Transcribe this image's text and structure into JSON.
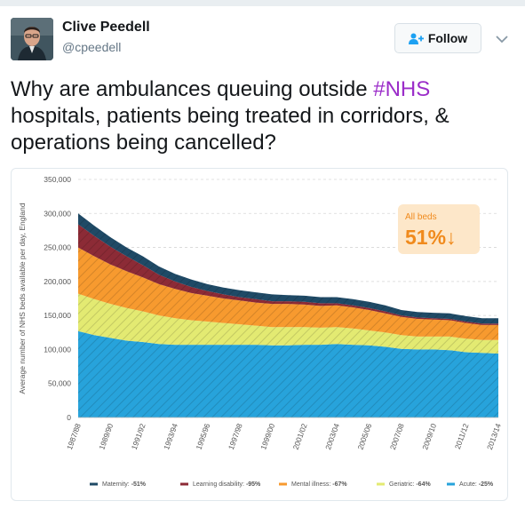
{
  "tweet": {
    "author_name": "Clive Peedell",
    "handle": "@cpeedell",
    "follow_label": "Follow",
    "text_before": "Why are ambulances queuing outside ",
    "hashtag": "#NHS",
    "text_after": " hospitals, patients being treated in corridors, & operations being cancelled?"
  },
  "colors": {
    "hashtag": "#9b2dc9",
    "maternity": "#1f4a66",
    "learning_disability": "#8c2b36",
    "mental_illness": "#f79a2f",
    "geriatric": "#e3ea72",
    "acute": "#27a3db"
  },
  "icons": [
    "add-user-icon",
    "chevron-down-icon"
  ],
  "chart_data": {
    "type": "area",
    "stacked": true,
    "ylabel": "Average number of NHS beds available per day, England",
    "ylim": [
      0,
      350000
    ],
    "yticks": [
      "0",
      "50,000",
      "100,000",
      "150,000",
      "200,000",
      "250,000",
      "300,000",
      "350,000"
    ],
    "grid": true,
    "categories": [
      "1987/88",
      "1988/89",
      "1989/90",
      "1990/91",
      "1991/92",
      "1992/93",
      "1993/94",
      "1994/95",
      "1995/96",
      "1996/97",
      "1997/98",
      "1998/99",
      "1999/00",
      "2000/01",
      "2001/02",
      "2002/03",
      "2003/04",
      "2004/05",
      "2005/06",
      "2006/07",
      "2007/08",
      "2008/09",
      "2009/10",
      "2010/11",
      "2011/12",
      "2012/13",
      "2013/14"
    ],
    "xtick_labels": [
      "1987/88",
      "1989/90",
      "1991/92",
      "1993/94",
      "1995/96",
      "1997/98",
      "1999/00",
      "2001/02",
      "2003/04",
      "2005/06",
      "2007/08",
      "2009/10",
      "2011/12",
      "2013/14"
    ],
    "series": [
      {
        "name": "Acute",
        "change": "-25%",
        "values": [
          127000,
          121000,
          117000,
          113000,
          111000,
          108000,
          107000,
          107000,
          107000,
          107000,
          107000,
          107000,
          106000,
          106000,
          107000,
          107000,
          108000,
          107000,
          106000,
          104000,
          101000,
          100000,
          100000,
          99000,
          96000,
          95000,
          94000
        ]
      },
      {
        "name": "Geriatric",
        "change": "-64%",
        "values": [
          55000,
          53000,
          50000,
          48000,
          45000,
          42000,
          39000,
          36000,
          34000,
          32000,
          30000,
          28000,
          27000,
          27000,
          26000,
          25000,
          25000,
          24000,
          22000,
          21000,
          20000,
          19000,
          19000,
          20000,
          20000,
          19000,
          20000
        ]
      },
      {
        "name": "Mental illness",
        "change": "-67%",
        "values": [
          68000,
          63000,
          58000,
          54000,
          50000,
          46000,
          43000,
          40000,
          38000,
          36000,
          35000,
          34000,
          34000,
          34000,
          33000,
          32000,
          32000,
          31000,
          30000,
          28000,
          27000,
          26000,
          25000,
          24000,
          23000,
          22000,
          22000
        ]
      },
      {
        "name": "Learning disability",
        "change": "-95%",
        "values": [
          34000,
          30000,
          26000,
          22000,
          18000,
          14000,
          11000,
          9000,
          7000,
          6000,
          5000,
          5000,
          4000,
          4000,
          4000,
          4000,
          3000,
          3000,
          3000,
          3000,
          2000,
          2000,
          2000,
          2000,
          2000,
          2000,
          2000
        ]
      },
      {
        "name": "Maternity",
        "change": "-51%",
        "values": [
          16000,
          15000,
          14000,
          13000,
          13000,
          12000,
          11000,
          11000,
          10000,
          10000,
          10000,
          10000,
          10000,
          9000,
          9000,
          9000,
          9000,
          9000,
          9000,
          9000,
          8000,
          8000,
          8000,
          8000,
          8000,
          8000,
          8000
        ]
      }
    ],
    "legend": {
      "position": "bottom",
      "order": [
        "Maternity",
        "Learning disability",
        "Mental illness",
        "Geriatric",
        "Acute"
      ]
    },
    "annotation": {
      "label": "All beds",
      "value": "51%",
      "arrow": "↓",
      "position": "top-right"
    }
  }
}
